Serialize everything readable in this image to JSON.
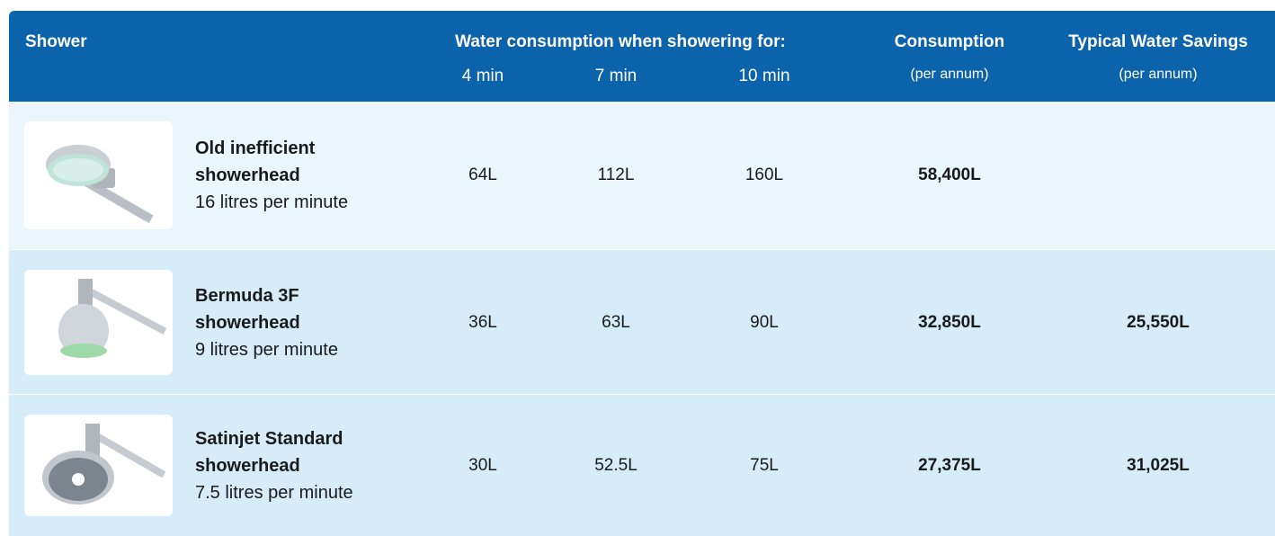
{
  "header": {
    "shower": "Shower",
    "water_consumption": "Water consumption when showering for:",
    "durations": [
      "4 min",
      "7 min",
      "10 min"
    ],
    "consumption": "Consumption",
    "consumption_note": "(per annum)",
    "savings": "Typical Water Savings",
    "savings_note": "(per annum)"
  },
  "table": {
    "rows": [
      {
        "name": "Old inefficient showerhead",
        "rate": "16 litres per minute",
        "usage": [
          "64L",
          "112L",
          "160L"
        ],
        "consumption": "58,400L"
      },
      {
        "name": "Bermuda 3F showerhead",
        "rate": "9 litres per minute",
        "usage": [
          "36L",
          "63L",
          "90L"
        ],
        "consumption": "32,850L",
        "savings": "25,550L"
      },
      {
        "name": "Satinjet Standard showerhead",
        "rate": "7.5 litres per minute",
        "usage": [
          "30L",
          "52.5L",
          "75L"
        ],
        "consumption": "27,375L",
        "savings": "31,025L"
      }
    ]
  }
}
